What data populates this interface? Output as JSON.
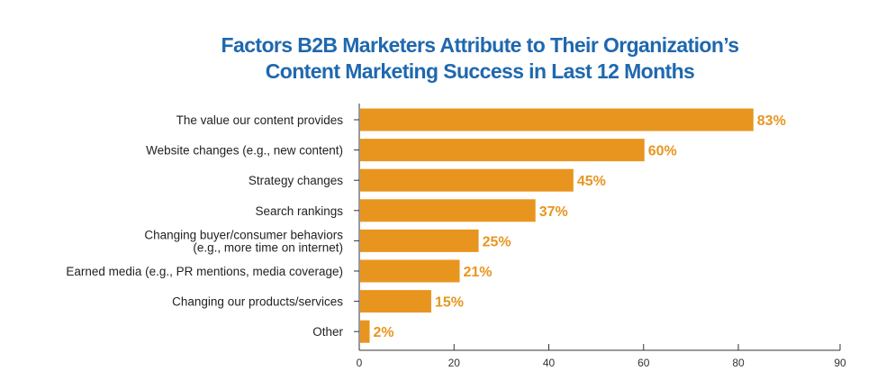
{
  "chart_data": {
    "type": "bar",
    "orientation": "horizontal",
    "title": [
      "Factors B2B Marketers Attribute to Their Organization’s",
      "Content Marketing Success in Last 12 Months"
    ],
    "categories": [
      [
        "The value our content provides"
      ],
      [
        "Website changes (e.g., new content)"
      ],
      [
        "Strategy changes"
      ],
      [
        "Search rankings"
      ],
      [
        "Changing buyer/consumer behaviors",
        "(e.g., more time on internet)"
      ],
      [
        "Earned media (e.g., PR mentions, media coverage)"
      ],
      [
        "Changing our products/services"
      ],
      [
        "Other"
      ]
    ],
    "values": [
      83,
      60,
      45,
      37,
      25,
      21,
      15,
      2
    ],
    "data_labels": [
      "83%",
      "60%",
      "45%",
      "37%",
      "25%",
      "21%",
      "15%",
      "2%"
    ],
    "xticks": [
      0,
      20,
      40,
      60,
      80,
      90
    ],
    "xlim": [
      0,
      90
    ],
    "xlabel": "",
    "ylabel": "",
    "grid": false,
    "colors": {
      "bar": "#e8951f",
      "label": "#e8951f",
      "title": "#1f68ae"
    }
  }
}
